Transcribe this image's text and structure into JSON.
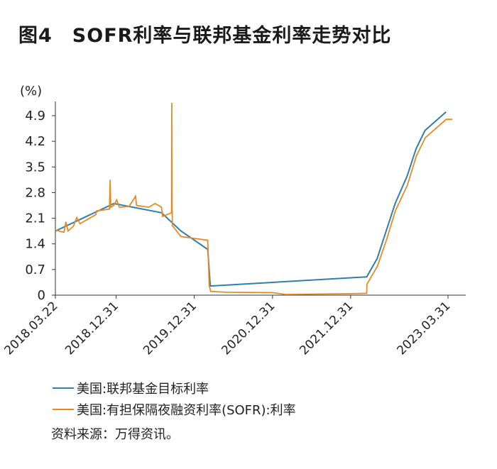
{
  "figure": {
    "number": "图4",
    "title": "SOFR利率与联邦基金利率走势对比",
    "source": "资料来源：万得资讯。"
  },
  "chart_data": {
    "type": "line",
    "title": "SOFR利率与联邦基金利率走势对比",
    "ylabel": "(%)",
    "xlabel": "",
    "ylim": [
      0,
      4.9
    ],
    "yticks": [
      "4.9",
      "4.2",
      "3.5",
      "2.8",
      "2.1",
      "1.4",
      "0.7",
      "0"
    ],
    "xlim": [
      "2018-03-22",
      "2023-04-30"
    ],
    "xticks": [
      "2018.03.22",
      "2018.12.31",
      "2019.12.31",
      "2020.12.31",
      "2021.12.31",
      "2023.03.31"
    ],
    "legend_position": "bottom",
    "grid": false,
    "series": [
      {
        "name": "美国:联邦基金目标利率",
        "color": "#2e7fad",
        "points": [
          [
            "2018-03-22",
            1.75
          ],
          [
            "2018-12-20",
            2.5
          ],
          [
            "2019-07-31",
            2.25
          ],
          [
            "2019-10-30",
            1.75
          ],
          [
            "2020-03-03",
            1.25
          ],
          [
            "2020-03-15",
            0.25
          ],
          [
            "2022-03-16",
            0.5
          ],
          [
            "2022-05-04",
            1.0
          ],
          [
            "2022-06-15",
            1.75
          ],
          [
            "2022-07-27",
            2.5
          ],
          [
            "2022-09-21",
            3.25
          ],
          [
            "2022-11-02",
            4.0
          ],
          [
            "2022-12-14",
            4.5
          ],
          [
            "2023-02-01",
            4.75
          ],
          [
            "2023-03-22",
            5.0
          ]
        ]
      },
      {
        "name": "美国:有担保隔夜融资利率(SOFR):利率",
        "color": "#e88a24",
        "points": [
          [
            "2018-03-22",
            1.78
          ],
          [
            "2018-04-15",
            1.74
          ],
          [
            "2018-05-01",
            1.72
          ],
          [
            "2018-05-10",
            2.0
          ],
          [
            "2018-05-20",
            1.75
          ],
          [
            "2018-06-14",
            1.88
          ],
          [
            "2018-06-30",
            2.12
          ],
          [
            "2018-07-15",
            1.95
          ],
          [
            "2018-09-27",
            2.2
          ],
          [
            "2018-10-01",
            2.3
          ],
          [
            "2018-11-30",
            2.35
          ],
          [
            "2018-12-03",
            3.15
          ],
          [
            "2018-12-06",
            2.4
          ],
          [
            "2018-12-20",
            2.45
          ],
          [
            "2019-01-02",
            2.6
          ],
          [
            "2019-01-15",
            2.4
          ],
          [
            "2019-03-01",
            2.42
          ],
          [
            "2019-04-01",
            2.7
          ],
          [
            "2019-04-05",
            2.45
          ],
          [
            "2019-06-01",
            2.4
          ],
          [
            "2019-07-01",
            2.5
          ],
          [
            "2019-07-31",
            2.4
          ],
          [
            "2019-08-05",
            2.15
          ],
          [
            "2019-09-16",
            2.25
          ],
          [
            "2019-09-17",
            5.25
          ],
          [
            "2019-09-18",
            2.55
          ],
          [
            "2019-09-20",
            1.9
          ],
          [
            "2019-10-30",
            1.6
          ],
          [
            "2019-12-31",
            1.55
          ],
          [
            "2020-03-03",
            1.5
          ],
          [
            "2020-03-10",
            0.26
          ],
          [
            "2020-03-17",
            0.1
          ],
          [
            "2020-06-01",
            0.08
          ],
          [
            "2020-12-31",
            0.07
          ],
          [
            "2021-03-01",
            0.02
          ],
          [
            "2021-12-31",
            0.04
          ],
          [
            "2022-03-16",
            0.05
          ],
          [
            "2022-03-17",
            0.3
          ],
          [
            "2022-05-05",
            0.79
          ],
          [
            "2022-06-16",
            1.5
          ],
          [
            "2022-07-28",
            2.3
          ],
          [
            "2022-09-22",
            3.0
          ],
          [
            "2022-11-03",
            3.8
          ],
          [
            "2022-12-15",
            4.3
          ],
          [
            "2023-02-02",
            4.55
          ],
          [
            "2023-03-23",
            4.8
          ],
          [
            "2023-04-20",
            4.8
          ]
        ]
      }
    ]
  }
}
